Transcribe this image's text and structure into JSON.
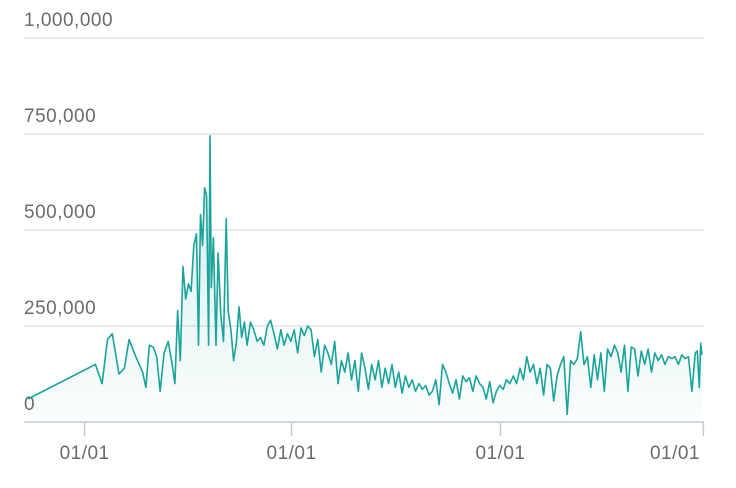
{
  "chart_data": {
    "type": "area",
    "title": "",
    "xlabel": "",
    "ylabel": "",
    "ylim": [
      0,
      1000000
    ],
    "xlim": [
      0,
      100
    ],
    "y_ticks": [
      {
        "value": 0,
        "label": "0"
      },
      {
        "value": 250000,
        "label": "250,000"
      },
      {
        "value": 500000,
        "label": "500,000"
      },
      {
        "value": 750000,
        "label": "750,000"
      },
      {
        "value": 1000000,
        "label": "1,000,000"
      }
    ],
    "x_ticks": [
      {
        "value": 8.4,
        "label": "01/01"
      },
      {
        "value": 39.1,
        "label": "01/01"
      },
      {
        "value": 70.1,
        "label": "01/01"
      },
      {
        "value": 100.2,
        "label": "01/01"
      }
    ],
    "grid": true,
    "line_color": "#1aa39a",
    "fill_color": "#1aa39a",
    "points": [
      [
        0,
        60000
      ],
      [
        10,
        150000
      ],
      [
        11,
        100000
      ],
      [
        11.8,
        215000
      ],
      [
        12.5,
        230000
      ],
      [
        13.5,
        125000
      ],
      [
        14.3,
        140000
      ],
      [
        15,
        215000
      ],
      [
        16,
        170000
      ],
      [
        17,
        130000
      ],
      [
        17.5,
        90000
      ],
      [
        18,
        200000
      ],
      [
        18.6,
        195000
      ],
      [
        19.1,
        170000
      ],
      [
        19.6,
        80000
      ],
      [
        20.2,
        180000
      ],
      [
        20.8,
        210000
      ],
      [
        21.4,
        150000
      ],
      [
        21.8,
        100000
      ],
      [
        22.2,
        290000
      ],
      [
        22.6,
        160000
      ],
      [
        23,
        405000
      ],
      [
        23.4,
        320000
      ],
      [
        23.8,
        360000
      ],
      [
        24.2,
        340000
      ],
      [
        24.6,
        460000
      ],
      [
        25,
        490000
      ],
      [
        25.3,
        200000
      ],
      [
        25.6,
        540000
      ],
      [
        25.9,
        460000
      ],
      [
        26.2,
        610000
      ],
      [
        26.5,
        590000
      ],
      [
        26.8,
        200000
      ],
      [
        27,
        745000
      ],
      [
        27.2,
        350000
      ],
      [
        27.5,
        480000
      ],
      [
        27.9,
        200000
      ],
      [
        28.2,
        440000
      ],
      [
        28.6,
        280000
      ],
      [
        29,
        210000
      ],
      [
        29.4,
        530000
      ],
      [
        29.7,
        290000
      ],
      [
        30.1,
        240000
      ],
      [
        30.5,
        160000
      ],
      [
        30.9,
        205000
      ],
      [
        31.3,
        300000
      ],
      [
        31.7,
        220000
      ],
      [
        32.1,
        260000
      ],
      [
        32.5,
        200000
      ],
      [
        33,
        260000
      ],
      [
        33.5,
        240000
      ],
      [
        34,
        210000
      ],
      [
        34.5,
        220000
      ],
      [
        35,
        200000
      ],
      [
        35.5,
        250000
      ],
      [
        36,
        265000
      ],
      [
        36.5,
        230000
      ],
      [
        37,
        190000
      ],
      [
        37.5,
        240000
      ],
      [
        38,
        200000
      ],
      [
        38.5,
        230000
      ],
      [
        39,
        210000
      ],
      [
        39.5,
        240000
      ],
      [
        40,
        180000
      ],
      [
        40.5,
        245000
      ],
      [
        41,
        225000
      ],
      [
        41.5,
        250000
      ],
      [
        42,
        240000
      ],
      [
        42.5,
        170000
      ],
      [
        43,
        215000
      ],
      [
        43.5,
        130000
      ],
      [
        44,
        200000
      ],
      [
        44.5,
        180000
      ],
      [
        45,
        150000
      ],
      [
        45.5,
        210000
      ],
      [
        46,
        100000
      ],
      [
        46.5,
        160000
      ],
      [
        47,
        130000
      ],
      [
        47.5,
        180000
      ],
      [
        48,
        110000
      ],
      [
        48.5,
        160000
      ],
      [
        49,
        80000
      ],
      [
        49.5,
        180000
      ],
      [
        50,
        140000
      ],
      [
        50.5,
        85000
      ],
      [
        51,
        150000
      ],
      [
        51.5,
        110000
      ],
      [
        52,
        160000
      ],
      [
        52.5,
        90000
      ],
      [
        53,
        140000
      ],
      [
        53.5,
        100000
      ],
      [
        54,
        150000
      ],
      [
        54.5,
        90000
      ],
      [
        55,
        130000
      ],
      [
        55.5,
        75000
      ],
      [
        56,
        120000
      ],
      [
        56.5,
        90000
      ],
      [
        57,
        110000
      ],
      [
        57.5,
        80000
      ],
      [
        58,
        100000
      ],
      [
        58.5,
        85000
      ],
      [
        59,
        95000
      ],
      [
        59.5,
        70000
      ],
      [
        60,
        80000
      ],
      [
        60.5,
        110000
      ],
      [
        61,
        45000
      ],
      [
        61.5,
        150000
      ],
      [
        62,
        130000
      ],
      [
        62.5,
        100000
      ],
      [
        63,
        75000
      ],
      [
        63.5,
        110000
      ],
      [
        64,
        60000
      ],
      [
        64.5,
        120000
      ],
      [
        65,
        105000
      ],
      [
        65.5,
        115000
      ],
      [
        66,
        80000
      ],
      [
        66.5,
        120000
      ],
      [
        67,
        100000
      ],
      [
        67.5,
        90000
      ],
      [
        68,
        60000
      ],
      [
        68.5,
        105000
      ],
      [
        69,
        50000
      ],
      [
        69.5,
        80000
      ],
      [
        70,
        95000
      ],
      [
        70.5,
        85000
      ],
      [
        71,
        110000
      ],
      [
        71.5,
        100000
      ],
      [
        72,
        120000
      ],
      [
        72.5,
        100000
      ],
      [
        73,
        140000
      ],
      [
        73.5,
        110000
      ],
      [
        74,
        170000
      ],
      [
        74.5,
        130000
      ],
      [
        75,
        150000
      ],
      [
        75.5,
        100000
      ],
      [
        76,
        140000
      ],
      [
        76.5,
        70000
      ],
      [
        77,
        150000
      ],
      [
        77.5,
        140000
      ],
      [
        78,
        55000
      ],
      [
        78.5,
        120000
      ],
      [
        79,
        150000
      ],
      [
        79.5,
        170000
      ],
      [
        80,
        20000
      ],
      [
        80.5,
        160000
      ],
      [
        81,
        150000
      ],
      [
        81.5,
        165000
      ],
      [
        82,
        235000
      ],
      [
        82.5,
        150000
      ],
      [
        83,
        170000
      ],
      [
        83.5,
        90000
      ],
      [
        84,
        175000
      ],
      [
        84.5,
        110000
      ],
      [
        85,
        180000
      ],
      [
        85.5,
        80000
      ],
      [
        86,
        190000
      ],
      [
        86.5,
        170000
      ],
      [
        87,
        200000
      ],
      [
        87.5,
        180000
      ],
      [
        88,
        130000
      ],
      [
        88.5,
        200000
      ],
      [
        89,
        80000
      ],
      [
        89.5,
        195000
      ],
      [
        90,
        190000
      ],
      [
        90.5,
        120000
      ],
      [
        91,
        185000
      ],
      [
        91.5,
        150000
      ],
      [
        92,
        190000
      ],
      [
        92.5,
        130000
      ],
      [
        93,
        180000
      ],
      [
        93.5,
        160000
      ],
      [
        94,
        175000
      ],
      [
        94.5,
        150000
      ],
      [
        95,
        170000
      ],
      [
        95.5,
        165000
      ],
      [
        96,
        170000
      ],
      [
        96.5,
        150000
      ],
      [
        97,
        175000
      ],
      [
        97.5,
        165000
      ],
      [
        98,
        170000
      ],
      [
        98.5,
        80000
      ],
      [
        99,
        180000
      ],
      [
        99.3,
        185000
      ],
      [
        99.6,
        90000
      ],
      [
        99.8,
        205000
      ],
      [
        100,
        175000
      ]
    ]
  }
}
